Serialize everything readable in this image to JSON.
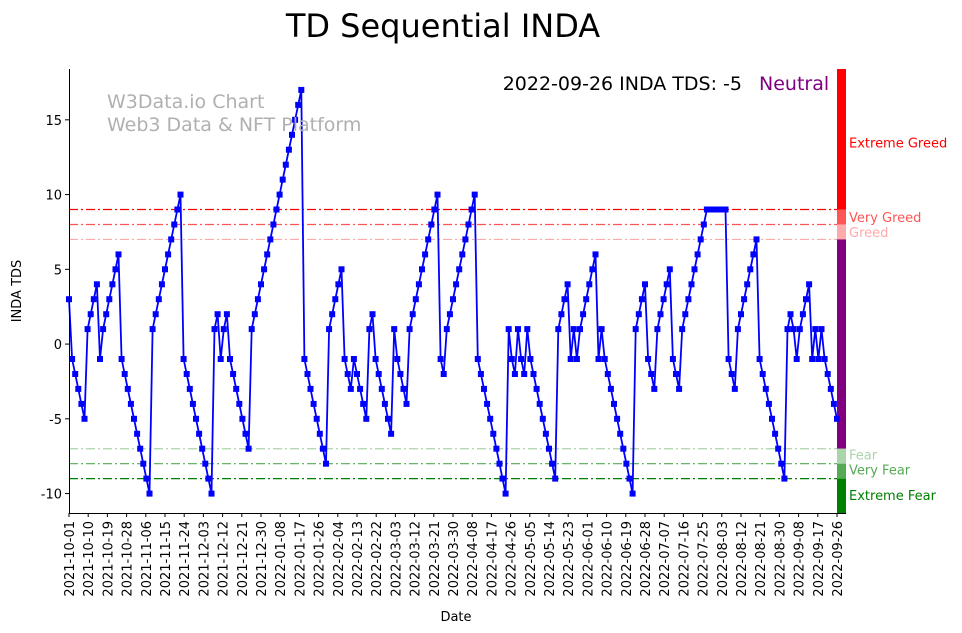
{
  "chart_data": {
    "type": "line",
    "title": "TD Sequential INDA",
    "xlabel": "Date",
    "ylabel": "INDA TDS",
    "ylim": [
      -11.3,
      18.4
    ],
    "yticks": [
      -10,
      -5,
      0,
      5,
      10,
      15
    ],
    "x_start_date": "2021-10-01",
    "x_end_date": "2022-09-26",
    "x_ticks": [
      "2021-10-01",
      "2021-10-10",
      "2021-10-19",
      "2021-10-28",
      "2021-11-06",
      "2021-11-15",
      "2021-11-24",
      "2021-12-03",
      "2021-12-12",
      "2021-12-21",
      "2021-12-30",
      "2022-01-08",
      "2022-01-17",
      "2022-01-26",
      "2022-02-04",
      "2022-02-13",
      "2022-02-22",
      "2022-03-03",
      "2022-03-12",
      "2022-03-21",
      "2022-03-30",
      "2022-04-08",
      "2022-04-17",
      "2022-04-26",
      "2022-05-05",
      "2022-05-14",
      "2022-05-23",
      "2022-06-01",
      "2022-06-10",
      "2022-06-19",
      "2022-06-28",
      "2022-07-07",
      "2022-07-16",
      "2022-07-25",
      "2022-08-03",
      "2022-08-12",
      "2022-08-21",
      "2022-08-30",
      "2022-09-08",
      "2022-09-17",
      "2022-09-26"
    ],
    "series": [
      {
        "name": "INDA TDS",
        "color": "#0000ff",
        "values": [
          3,
          -1,
          -2,
          -3,
          -4,
          -5,
          1,
          2,
          3,
          4,
          -1,
          1,
          2,
          3,
          4,
          5,
          6,
          -1,
          -2,
          -3,
          -4,
          -5,
          -6,
          -7,
          -8,
          -9,
          -10,
          1,
          2,
          3,
          4,
          5,
          6,
          7,
          8,
          9,
          10,
          -1,
          -2,
          -3,
          -4,
          -5,
          -6,
          -7,
          -8,
          -9,
          -10,
          1,
          2,
          -1,
          1,
          2,
          -1,
          -2,
          -3,
          -4,
          -5,
          -6,
          -7,
          1,
          2,
          3,
          4,
          5,
          6,
          7,
          8,
          9,
          10,
          11,
          12,
          13,
          14,
          15,
          16,
          17,
          -1,
          -2,
          -3,
          -4,
          -5,
          -6,
          -7,
          -8,
          1,
          2,
          3,
          4,
          5,
          -1,
          -2,
          -3,
          -1,
          -2,
          -3,
          -4,
          -5,
          1,
          2,
          -1,
          -2,
          -3,
          -4,
          -5,
          -6,
          1,
          -1,
          -2,
          -3,
          -4,
          1,
          2,
          3,
          4,
          5,
          6,
          7,
          8,
          9,
          10,
          -1,
          -2,
          1,
          2,
          3,
          4,
          5,
          6,
          7,
          8,
          9,
          10,
          -1,
          -2,
          -3,
          -4,
          -5,
          -6,
          -7,
          -8,
          -9,
          -10,
          1,
          -1,
          -2,
          1,
          -1,
          -2,
          1,
          -1,
          -2,
          -3,
          -4,
          -5,
          -6,
          -7,
          -8,
          -9,
          1,
          2,
          3,
          4,
          -1,
          1,
          -1,
          1,
          2,
          3,
          4,
          5,
          6,
          -1,
          1,
          -1,
          -2,
          -3,
          -4,
          -5,
          -6,
          -7,
          -8,
          -9,
          -10,
          1,
          2,
          3,
          4,
          -1,
          -2,
          -3,
          1,
          2,
          3,
          4,
          5,
          -1,
          -2,
          -3,
          1,
          2,
          3,
          4,
          5,
          6,
          7,
          8,
          9,
          9,
          9,
          9,
          9,
          9,
          9,
          -1,
          -2,
          -3,
          1,
          2,
          3,
          4,
          5,
          6,
          7,
          -1,
          -2,
          -3,
          -4,
          -5,
          -6,
          -7,
          -8,
          -9,
          1,
          2,
          1,
          -1,
          1,
          2,
          3,
          4,
          -1,
          1,
          -1,
          1,
          -1,
          -2,
          -3,
          -4,
          -5
        ]
      }
    ],
    "reference_lines": [
      {
        "name": "Extreme Greed",
        "value": 9,
        "color": "#ff0000"
      },
      {
        "name": "Very Greed",
        "value": 8,
        "color": "#ff5555"
      },
      {
        "name": "Greed",
        "value": 7,
        "color": "#ffaaaa"
      },
      {
        "name": "Fear",
        "value": -7,
        "color": "#aad4aa"
      },
      {
        "name": "Very Fear",
        "value": -8,
        "color": "#55aa55"
      },
      {
        "name": "Extreme Fear",
        "value": -9,
        "color": "#008000"
      }
    ],
    "sentiment_bar": [
      {
        "from": 9,
        "to": 18.4,
        "color": "#ff0000"
      },
      {
        "from": 8,
        "to": 9,
        "color": "#ff5555"
      },
      {
        "from": 7,
        "to": 8,
        "color": "#ffaaaa"
      },
      {
        "from": -7,
        "to": 7,
        "color": "#800080"
      },
      {
        "from": -8,
        "to": -7,
        "color": "#aad4aa"
      },
      {
        "from": -9,
        "to": -8,
        "color": "#55aa55"
      },
      {
        "from": -11.3,
        "to": -9,
        "color": "#008000"
      }
    ],
    "zone_labels": [
      {
        "text": "Extreme Greed",
        "value": 13.5,
        "color": "#ff0000"
      },
      {
        "text": "Very Greed",
        "value": 8.5,
        "color": "#ff5555"
      },
      {
        "text": "Greed",
        "value": 7.5,
        "color": "#ffaaaa"
      },
      {
        "text": "Fear",
        "value": -7.4,
        "color": "#aad4aa"
      },
      {
        "text": "Very Fear",
        "value": -8.4,
        "color": "#55aa55"
      },
      {
        "text": "Extreme Fear",
        "value": -10.1,
        "color": "#008000"
      }
    ]
  },
  "watermark": {
    "line1": "W3Data.io Chart",
    "line2": "Web3 Data & NFT Platform"
  },
  "status": {
    "text": "2022-09-26 INDA TDS: -5",
    "sentiment": "Neutral",
    "sentiment_color": "#800080"
  }
}
